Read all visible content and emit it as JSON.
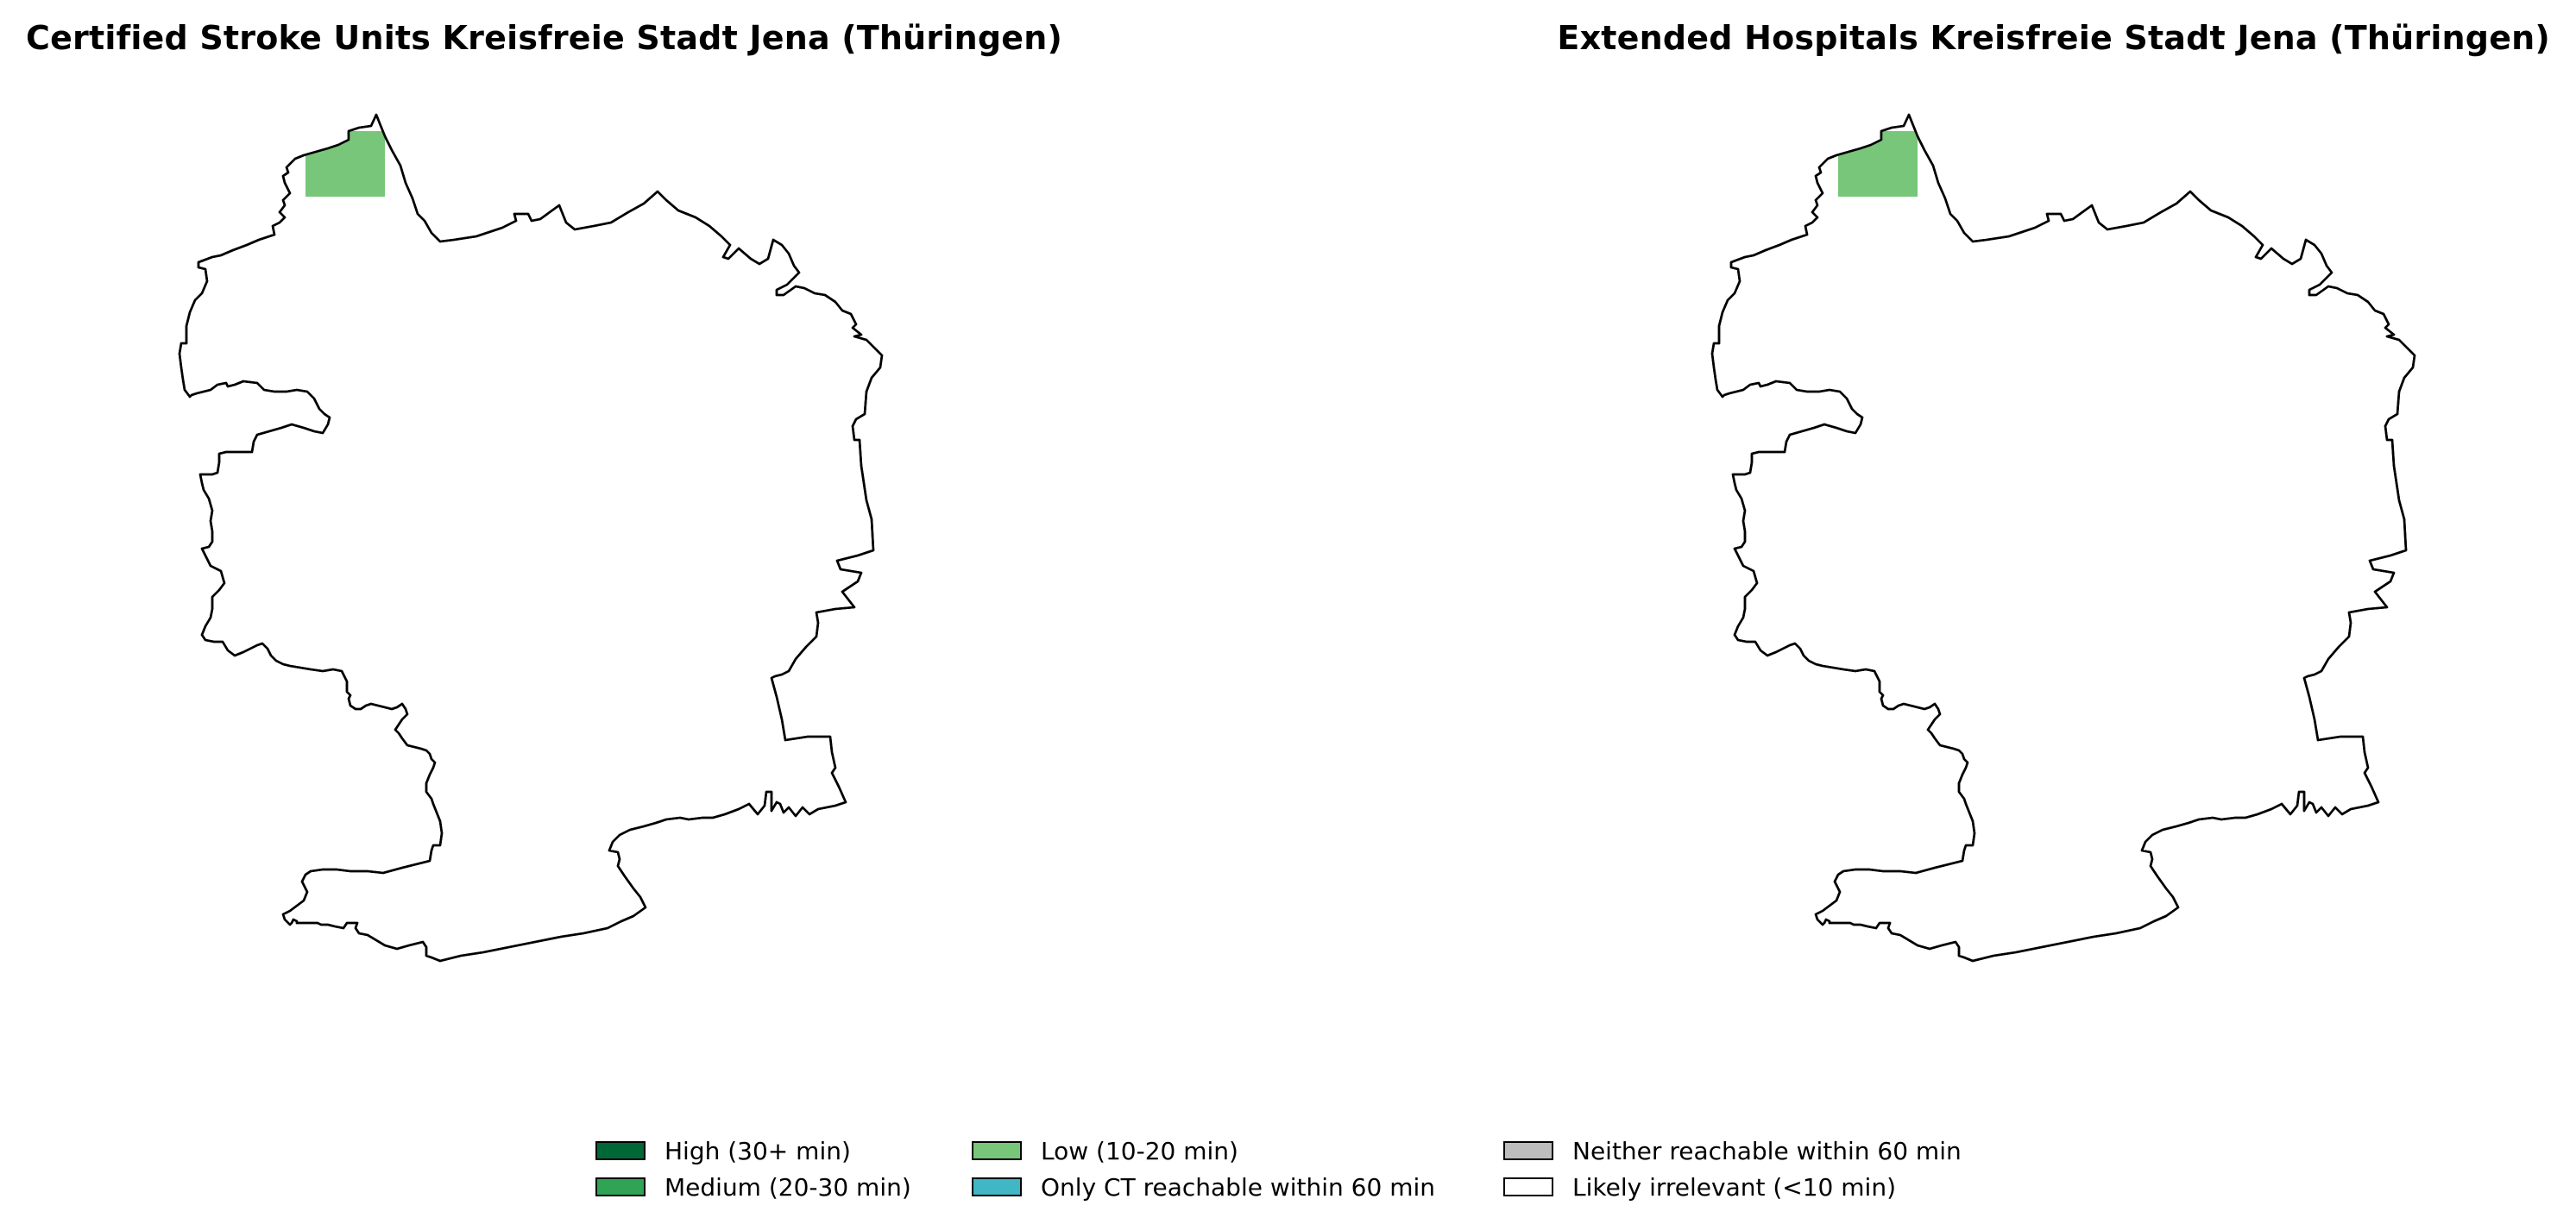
{
  "maps": [
    {
      "title": "Certified Stroke Units Kreisfreie Stadt Jena (Thüringen)"
    },
    {
      "title": "Extended Hospitals Kreisfreie Stadt Jena (Thüringen)"
    }
  ],
  "boundary_color": "#000000",
  "region_fill": "#ffffff",
  "highlight_cell_category": "Low (10-20 min)",
  "legend": [
    {
      "label": "High (30+ min)",
      "color": "#006837"
    },
    {
      "label": "Medium (20-30 min)",
      "color": "#31a354"
    },
    {
      "label": "Low (10-20 min)",
      "color": "#78c679"
    },
    {
      "label": "Only CT reachable within 60 min",
      "color": "#41b6c4"
    },
    {
      "label": "Neither reachable within 60 min",
      "color": "#bdbdbd"
    },
    {
      "label": "Likely irrelevant (<10 min)",
      "color": "#ffffff"
    }
  ]
}
